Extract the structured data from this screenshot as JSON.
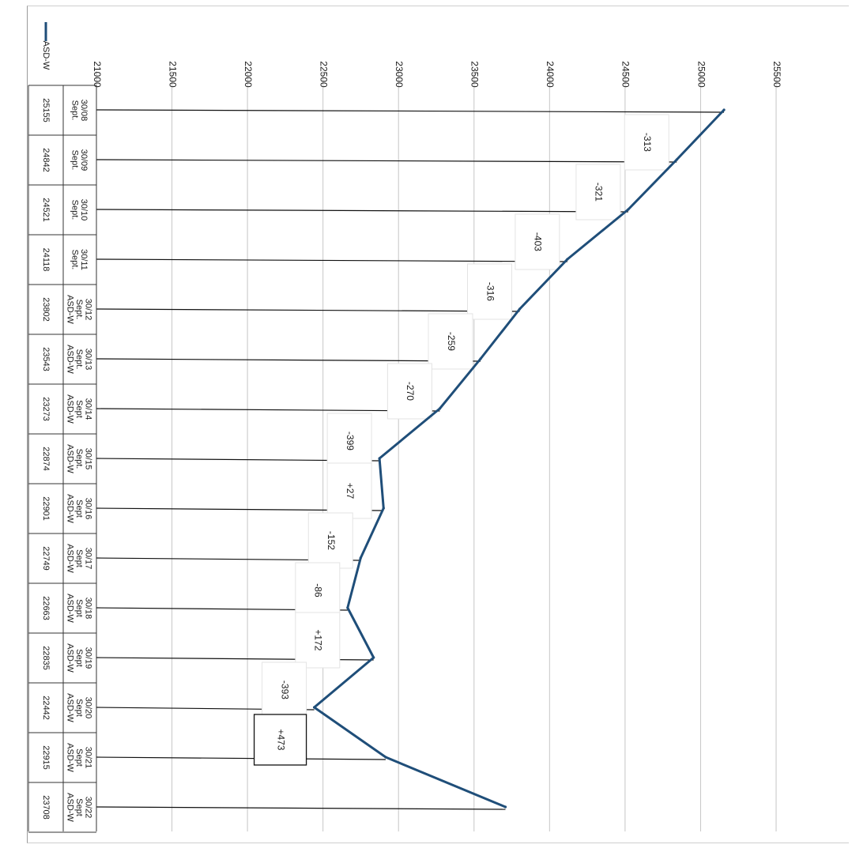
{
  "chart_data": {
    "type": "line",
    "orientation": "rotated 90 degrees clockwise (categories run top-to-bottom, values increase to the right)",
    "title": "",
    "xlabel": "",
    "ylabel": "",
    "ylim": [
      21000,
      25500
    ],
    "ytick_step": 500,
    "ytick_labels": [
      "21000",
      "21500",
      "22000",
      "22500",
      "23000",
      "23500",
      "24000",
      "24500",
      "25000",
      "25500"
    ],
    "grid": "vertical gridlines at each tick",
    "legend_position": "bottom-left of the data table",
    "categories": [
      [
        "Sept.",
        "30/08"
      ],
      [
        "Sept.",
        "30/09"
      ],
      [
        "Sept.",
        "30/10"
      ],
      [
        "Sept.",
        "30/11"
      ],
      [
        "ASD-W",
        "Sept.",
        "30/12"
      ],
      [
        "ASD-W",
        "Sept.",
        "30/13"
      ],
      [
        "ASD-W",
        "Sept",
        "30/14"
      ],
      [
        "ASD-W",
        "Sept.",
        "30/15"
      ],
      [
        "ASD-W",
        "Sept",
        "30/16"
      ],
      [
        "ASD-W",
        "Sept",
        "30/17"
      ],
      [
        "ASD-W",
        "Sept",
        "30/18"
      ],
      [
        "ASD-W",
        "Sept",
        "30/19"
      ],
      [
        "ASD-W",
        "Sept",
        "30/20"
      ],
      [
        "ASD-W",
        "Sept",
        "30/21"
      ],
      [
        "ASD-W",
        "Sept",
        "30/22"
      ]
    ],
    "series": [
      {
        "name": "ASD-W",
        "color": "#1f4e79",
        "values": [
          25155,
          24842,
          24521,
          24118,
          23802,
          23543,
          23273,
          22874,
          22901,
          22749,
          22663,
          22835,
          22442,
          22915,
          23708
        ],
        "table_values": [
          "25155",
          "24842",
          "24521",
          "24118",
          "23802",
          "23543",
          "23273",
          "22874",
          "22901",
          "22749",
          "22663",
          "22835",
          "22442",
          "22915",
          "23708"
        ]
      }
    ],
    "annotations": [
      {
        "after_index": 1,
        "text": "-313",
        "boxed": false
      },
      {
        "after_index": 2,
        "text": "-321",
        "boxed": false
      },
      {
        "after_index": 3,
        "text": "-403",
        "boxed": false
      },
      {
        "after_index": 4,
        "text": "-316",
        "boxed": false
      },
      {
        "after_index": 5,
        "text": "-259",
        "boxed": false
      },
      {
        "after_index": 6,
        "text": "-270",
        "boxed": false
      },
      {
        "after_index": 7,
        "text": "-399",
        "boxed": false
      },
      {
        "after_index": 8,
        "text": "+27",
        "boxed": false
      },
      {
        "after_index": 9,
        "text": "-152",
        "boxed": false
      },
      {
        "after_index": 10,
        "text": "-86",
        "boxed": false
      },
      {
        "after_index": 11,
        "text": "+172",
        "boxed": false
      },
      {
        "after_index": 12,
        "text": "-393",
        "boxed": false
      },
      {
        "after_index": 13,
        "text": "+473",
        "boxed": true
      }
    ]
  }
}
